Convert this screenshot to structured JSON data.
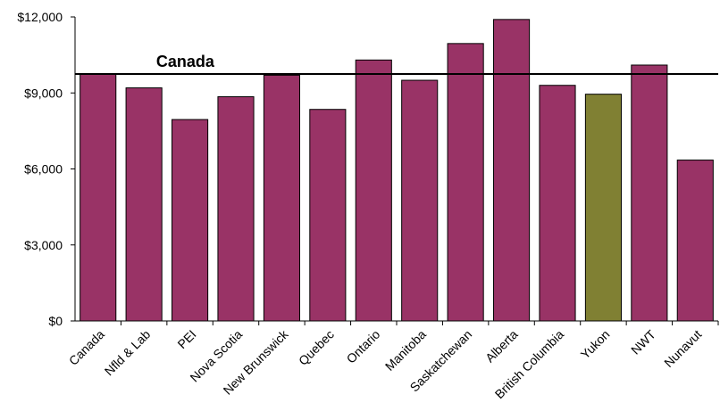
{
  "chart_data": {
    "type": "bar",
    "categories": [
      "Canada",
      "Nfld & Lab",
      "PEI",
      "Nova Scotia",
      "New Brunswick",
      "Quebec",
      "Ontario",
      "Manitoba",
      "Saskatchewan",
      "Alberta",
      "British Columbia",
      "Yukon",
      "NWT",
      "Nunavut"
    ],
    "values": [
      9750,
      9200,
      7950,
      8850,
      9700,
      8350,
      10300,
      9500,
      10950,
      11900,
      9300,
      8950,
      10100,
      6350
    ],
    "ylim": [
      0,
      12000
    ],
    "yticks": [
      0,
      3000,
      6000,
      9000,
      12000
    ],
    "ytick_labels": [
      "$0",
      "$3,000",
      "$6,000",
      "$9,000",
      "$12,000"
    ],
    "reference_line": {
      "label": "Canada",
      "value": 9750
    },
    "bar_color": "#993366",
    "highlight_color": "#808033",
    "highlight_category": "Yukon",
    "grid": false,
    "legend": "none"
  }
}
